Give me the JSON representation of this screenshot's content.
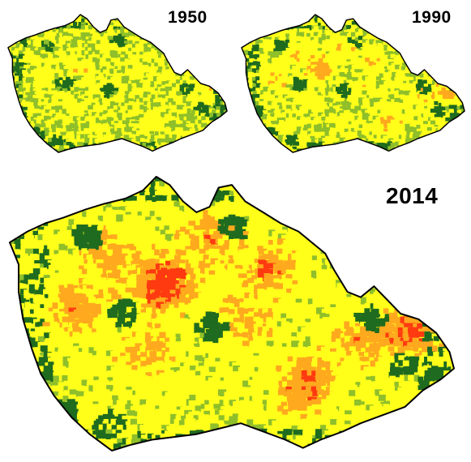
{
  "maps": [
    {
      "year": "1950",
      "intensity": 0.15,
      "seed": 11
    },
    {
      "year": "1990",
      "intensity": 0.35,
      "seed": 23
    },
    {
      "year": "2014",
      "intensity": 0.62,
      "seed": 37
    }
  ],
  "palette": {
    "dark_green": "#1f6b1f",
    "olive_green": "#8fbf2a",
    "yellow": "#ffff1a",
    "orange": "#ffa91e",
    "red": "#ff3a10",
    "outline": "#000000"
  }
}
